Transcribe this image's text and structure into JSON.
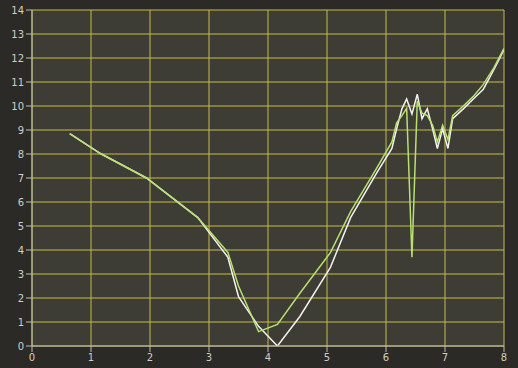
{
  "chart_data": {
    "type": "line",
    "x": [
      0.64,
      1.16,
      1.94,
      2.81,
      3.32,
      3.5,
      3.84,
      4.16,
      4.54,
      5.06,
      5.4,
      5.84,
      6.1,
      6.18,
      6.27,
      6.35,
      6.44,
      6.53,
      6.61,
      6.7,
      6.79,
      6.87,
      6.96,
      7.05,
      7.13,
      7.31,
      7.48,
      7.65,
      7.83,
      8.0
    ],
    "series": [
      {
        "color": "#f2f2ee",
        "values": [
          8.85,
          8.02,
          7.0,
          5.35,
          3.7,
          2.06,
          0.82,
          0.0,
          1.23,
          3.29,
          5.35,
          7.2,
          8.23,
          9.05,
          9.88,
          10.29,
          9.67,
          10.49,
          9.47,
          9.88,
          9.05,
          8.23,
          9.05,
          8.23,
          9.47,
          9.88,
          10.29,
          10.7,
          11.52,
          12.35
        ]
      },
      {
        "color": "#b8e070",
        "values": [
          8.85,
          8.02,
          7.0,
          5.35,
          3.9,
          2.5,
          0.6,
          0.9,
          2.2,
          3.9,
          5.6,
          7.4,
          8.5,
          9.3,
          9.6,
          9.9,
          3.7,
          10.2,
          9.7,
          9.6,
          9.2,
          8.5,
          9.2,
          8.6,
          9.6,
          10.0,
          10.4,
          10.9,
          11.6,
          12.4
        ]
      }
    ],
    "xlim": [
      0,
      8
    ],
    "xticks": [
      0,
      1,
      2,
      3,
      4,
      5,
      6,
      7,
      8
    ],
    "ylim": [
      0,
      14
    ],
    "yticks": [
      0,
      1,
      2,
      3,
      4,
      5,
      6,
      7,
      8,
      9,
      10,
      11,
      12,
      13,
      14
    ],
    "grid": true
  }
}
